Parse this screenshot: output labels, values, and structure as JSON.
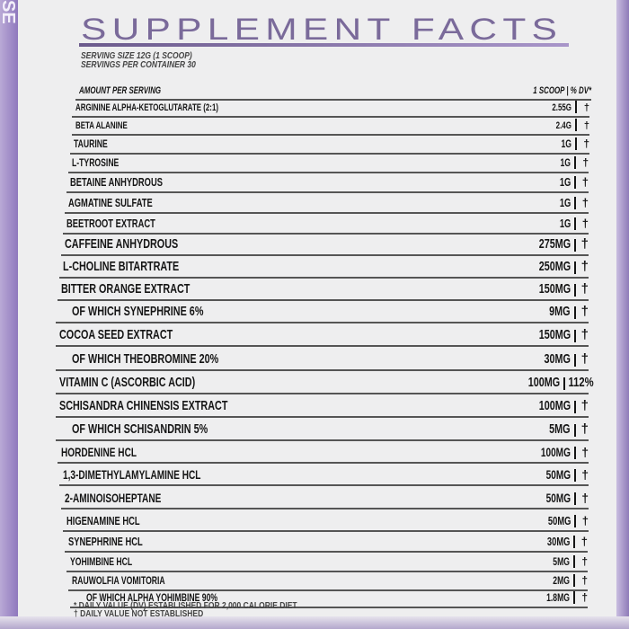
{
  "side_text": "SE",
  "title": "SUPPLEMENT FACTS",
  "serving_size": "SERVING SIZE 12G (1 SCOOP)",
  "servings_per_container": "SERVINGS PER CONTAINER 30",
  "header": {
    "label": "AMOUNT PER SERVING",
    "amount": "1 SCOOP",
    "dv": "% DV*"
  },
  "ingredients": [
    {
      "name": "ARGININE ALPHA-KETOGLUTARATE (2:1)",
      "amount": "2.55G",
      "dv": "†",
      "sub": false
    },
    {
      "name": "BETA ALANINE",
      "amount": "2.4G",
      "dv": "†",
      "sub": false
    },
    {
      "name": "TAURINE",
      "amount": "1G",
      "dv": "†",
      "sub": false
    },
    {
      "name": "L-TYROSINE",
      "amount": "1G",
      "dv": "†",
      "sub": false
    },
    {
      "name": "BETAINE ANHYDROUS",
      "amount": "1G",
      "dv": "†",
      "sub": false
    },
    {
      "name": "AGMATINE SULFATE",
      "amount": "1G",
      "dv": "†",
      "sub": false
    },
    {
      "name": "BEETROOT EXTRACT",
      "amount": "1G",
      "dv": "†",
      "sub": false
    },
    {
      "name": "CAFFEINE ANHYDROUS",
      "amount": "275MG",
      "dv": "†",
      "sub": false
    },
    {
      "name": "L-CHOLINE BITARTRATE",
      "amount": "250MG",
      "dv": "†",
      "sub": false
    },
    {
      "name": "BITTER ORANGE EXTRACT",
      "amount": "150MG",
      "dv": "†",
      "sub": false
    },
    {
      "name": "OF WHICH SYNEPHRINE 6%",
      "amount": "9MG",
      "dv": "†",
      "sub": true
    },
    {
      "name": "COCOA SEED EXTRACT",
      "amount": "150MG",
      "dv": "†",
      "sub": false
    },
    {
      "name": "OF WHICH THEOBROMINE 20%",
      "amount": "30MG",
      "dv": "†",
      "sub": true
    },
    {
      "name": "VITAMIN C (ASCORBIC ACID)",
      "amount": "100MG",
      "dv": "112%",
      "sub": false
    },
    {
      "name": "SCHISANDRA CHINENSIS EXTRACT",
      "amount": "100MG",
      "dv": "†",
      "sub": false
    },
    {
      "name": "OF WHICH SCHISANDRIN 5%",
      "amount": "5MG",
      "dv": "†",
      "sub": true
    },
    {
      "name": "HORDENINE HCL",
      "amount": "100MG",
      "dv": "†",
      "sub": false
    },
    {
      "name": "1,3-DIMETHYLAMYLAMINE HCL",
      "amount": "50MG",
      "dv": "†",
      "sub": false
    },
    {
      "name": "2-AMINOISOHEPTANE",
      "amount": "50MG",
      "dv": "†",
      "sub": false
    },
    {
      "name": "HIGENAMINE HCL",
      "amount": "50MG",
      "dv": "†",
      "sub": false
    },
    {
      "name": "SYNEPHRINE HCL",
      "amount": "30MG",
      "dv": "†",
      "sub": false
    },
    {
      "name": "YOHIMBINE HCL",
      "amount": "5MG",
      "dv": "†",
      "sub": false
    },
    {
      "name": "RAUWOLFIA VOMITORIA",
      "amount": "2MG",
      "dv": "†",
      "sub": false
    },
    {
      "name": "OF WHICH ALPHA YOHIMBINE 90%",
      "amount": "1.8MG",
      "dv": "†",
      "sub": true
    }
  ],
  "footnotes": [
    "* DAILY VALUE (DV) ESTABLISHED FOR 2,000 CALORIE DIET",
    "† DAILY VALUE NOT ESTABLISHED"
  ]
}
